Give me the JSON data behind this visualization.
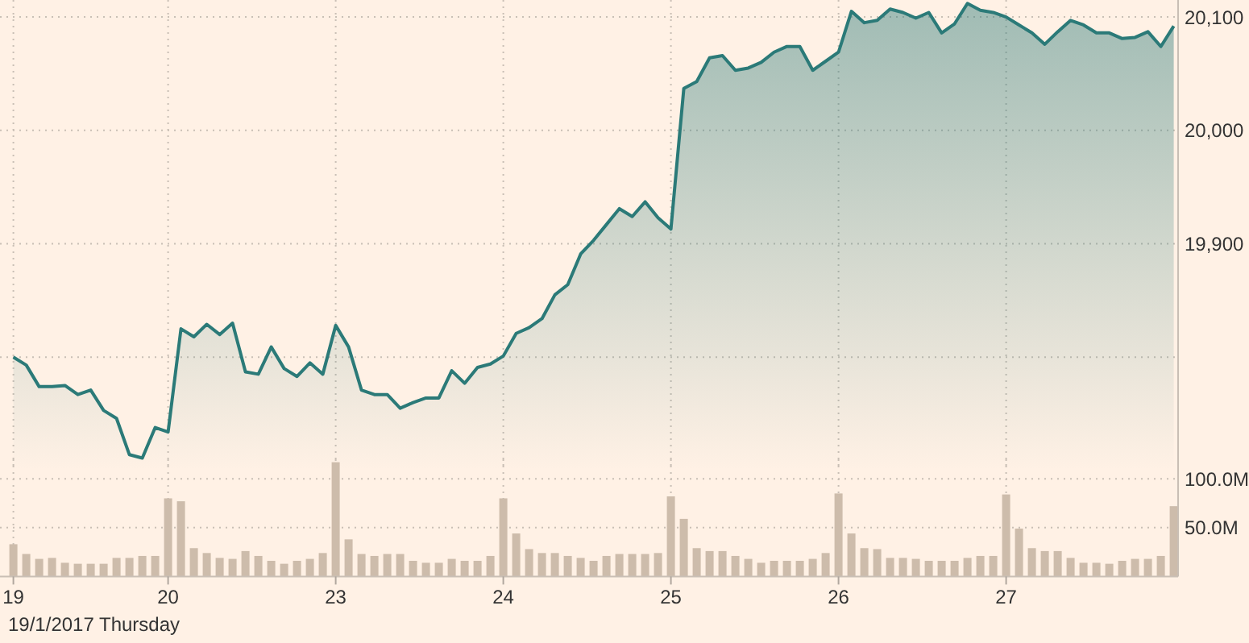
{
  "chart_data": [
    {
      "type": "area",
      "categories": [
        "19",
        null,
        null,
        null,
        null,
        null,
        null,
        null,
        null,
        null,
        null,
        null,
        "20",
        null,
        null,
        null,
        null,
        null,
        null,
        null,
        null,
        null,
        null,
        null,
        null,
        "23",
        null,
        null,
        null,
        null,
        null,
        null,
        null,
        null,
        null,
        null,
        null,
        null,
        "24",
        null,
        null,
        null,
        null,
        null,
        null,
        null,
        null,
        null,
        null,
        null,
        null,
        "25",
        null,
        null,
        null,
        null,
        null,
        null,
        null,
        null,
        null,
        null,
        null,
        null,
        "26",
        null,
        null,
        null,
        null,
        null,
        null,
        null,
        null,
        null,
        null,
        null,
        null,
        "27",
        null,
        null,
        null,
        null,
        null,
        null,
        null,
        null,
        null,
        null,
        null,
        null,
        null
      ],
      "series": [
        {
          "color": "#2b7a78",
          "values": [
            19800,
            19793,
            19774,
            19774,
            19775,
            19767,
            19771,
            19753,
            19746,
            19714,
            19711,
            19738,
            19734,
            19825,
            19818,
            19829,
            19820,
            19830,
            19787,
            19785,
            19809,
            19790,
            19783,
            19795,
            19785,
            19828,
            19809,
            19771,
            19767,
            19767,
            19755,
            19760,
            19764,
            19764,
            19788,
            19777,
            19791,
            19794,
            19801,
            19821,
            19826,
            19834,
            19855,
            19864,
            19891,
            19903,
            19917,
            19931,
            19924,
            19937,
            19923,
            19913,
            20037,
            20043,
            20064,
            20066,
            20053,
            20055,
            20060,
            20069,
            20074,
            20074,
            20053,
            20061,
            20069,
            20105,
            20095,
            20097,
            20107,
            20104,
            20099,
            20104,
            20086,
            20094,
            20112,
            20106,
            20104,
            20100,
            20093,
            20086,
            20076,
            20087,
            20097,
            20093,
            20086,
            20086,
            20081,
            20082,
            20087,
            20074,
            20092
          ]
        }
      ],
      "ylim": [
        19700,
        20115
      ],
      "yticks": [
        {
          "value": 19800,
          "label": null
        },
        {
          "value": 19900,
          "label": "19,900"
        },
        {
          "value": 20000,
          "label": "20,000"
        },
        {
          "value": 20100,
          "label": "20,100"
        }
      ],
      "grid": true,
      "tick_labels": "y"
    },
    {
      "type": "bar",
      "categories": [
        "19",
        null,
        null,
        null,
        null,
        null,
        null,
        null,
        null,
        null,
        null,
        null,
        "20",
        null,
        null,
        null,
        null,
        null,
        null,
        null,
        null,
        null,
        null,
        null,
        null,
        "23",
        null,
        null,
        null,
        null,
        null,
        null,
        null,
        null,
        null,
        null,
        null,
        null,
        "24",
        null,
        null,
        null,
        null,
        null,
        null,
        null,
        null,
        null,
        null,
        null,
        null,
        "25",
        null,
        null,
        null,
        null,
        null,
        null,
        null,
        null,
        null,
        null,
        null,
        null,
        "26",
        null,
        null,
        null,
        null,
        null,
        null,
        null,
        null,
        null,
        null,
        null,
        null,
        "27",
        null,
        null,
        null,
        null,
        null,
        null,
        null,
        null,
        null,
        null,
        null,
        null,
        null
      ],
      "series": [
        {
          "color": "#cdbcab",
          "values": [
            33,
            23,
            18,
            19,
            14,
            13,
            13,
            13,
            19,
            19,
            21,
            21,
            80,
            77,
            29,
            24,
            19,
            18,
            26,
            21,
            16,
            13,
            16,
            18,
            24,
            117,
            38,
            23,
            21,
            23,
            23,
            16,
            14,
            14,
            18,
            16,
            16,
            21,
            80,
            44,
            28,
            24,
            24,
            21,
            19,
            16,
            21,
            23,
            23,
            23,
            24,
            82,
            59,
            29,
            26,
            26,
            21,
            18,
            14,
            16,
            16,
            16,
            18,
            24,
            85,
            44,
            29,
            28,
            19,
            19,
            18,
            16,
            16,
            16,
            19,
            21,
            21,
            84,
            49,
            29,
            26,
            26,
            19,
            14,
            14,
            13,
            16,
            18,
            18,
            21,
            72
          ]
        }
      ],
      "ylim": [
        0,
        120
      ],
      "yticks": [
        {
          "value": 50,
          "label": "50.0M"
        },
        {
          "value": 100,
          "label": "100.0M"
        }
      ],
      "grid": true,
      "annotations": [
        "19/1/2017 Thursday"
      ]
    }
  ]
}
